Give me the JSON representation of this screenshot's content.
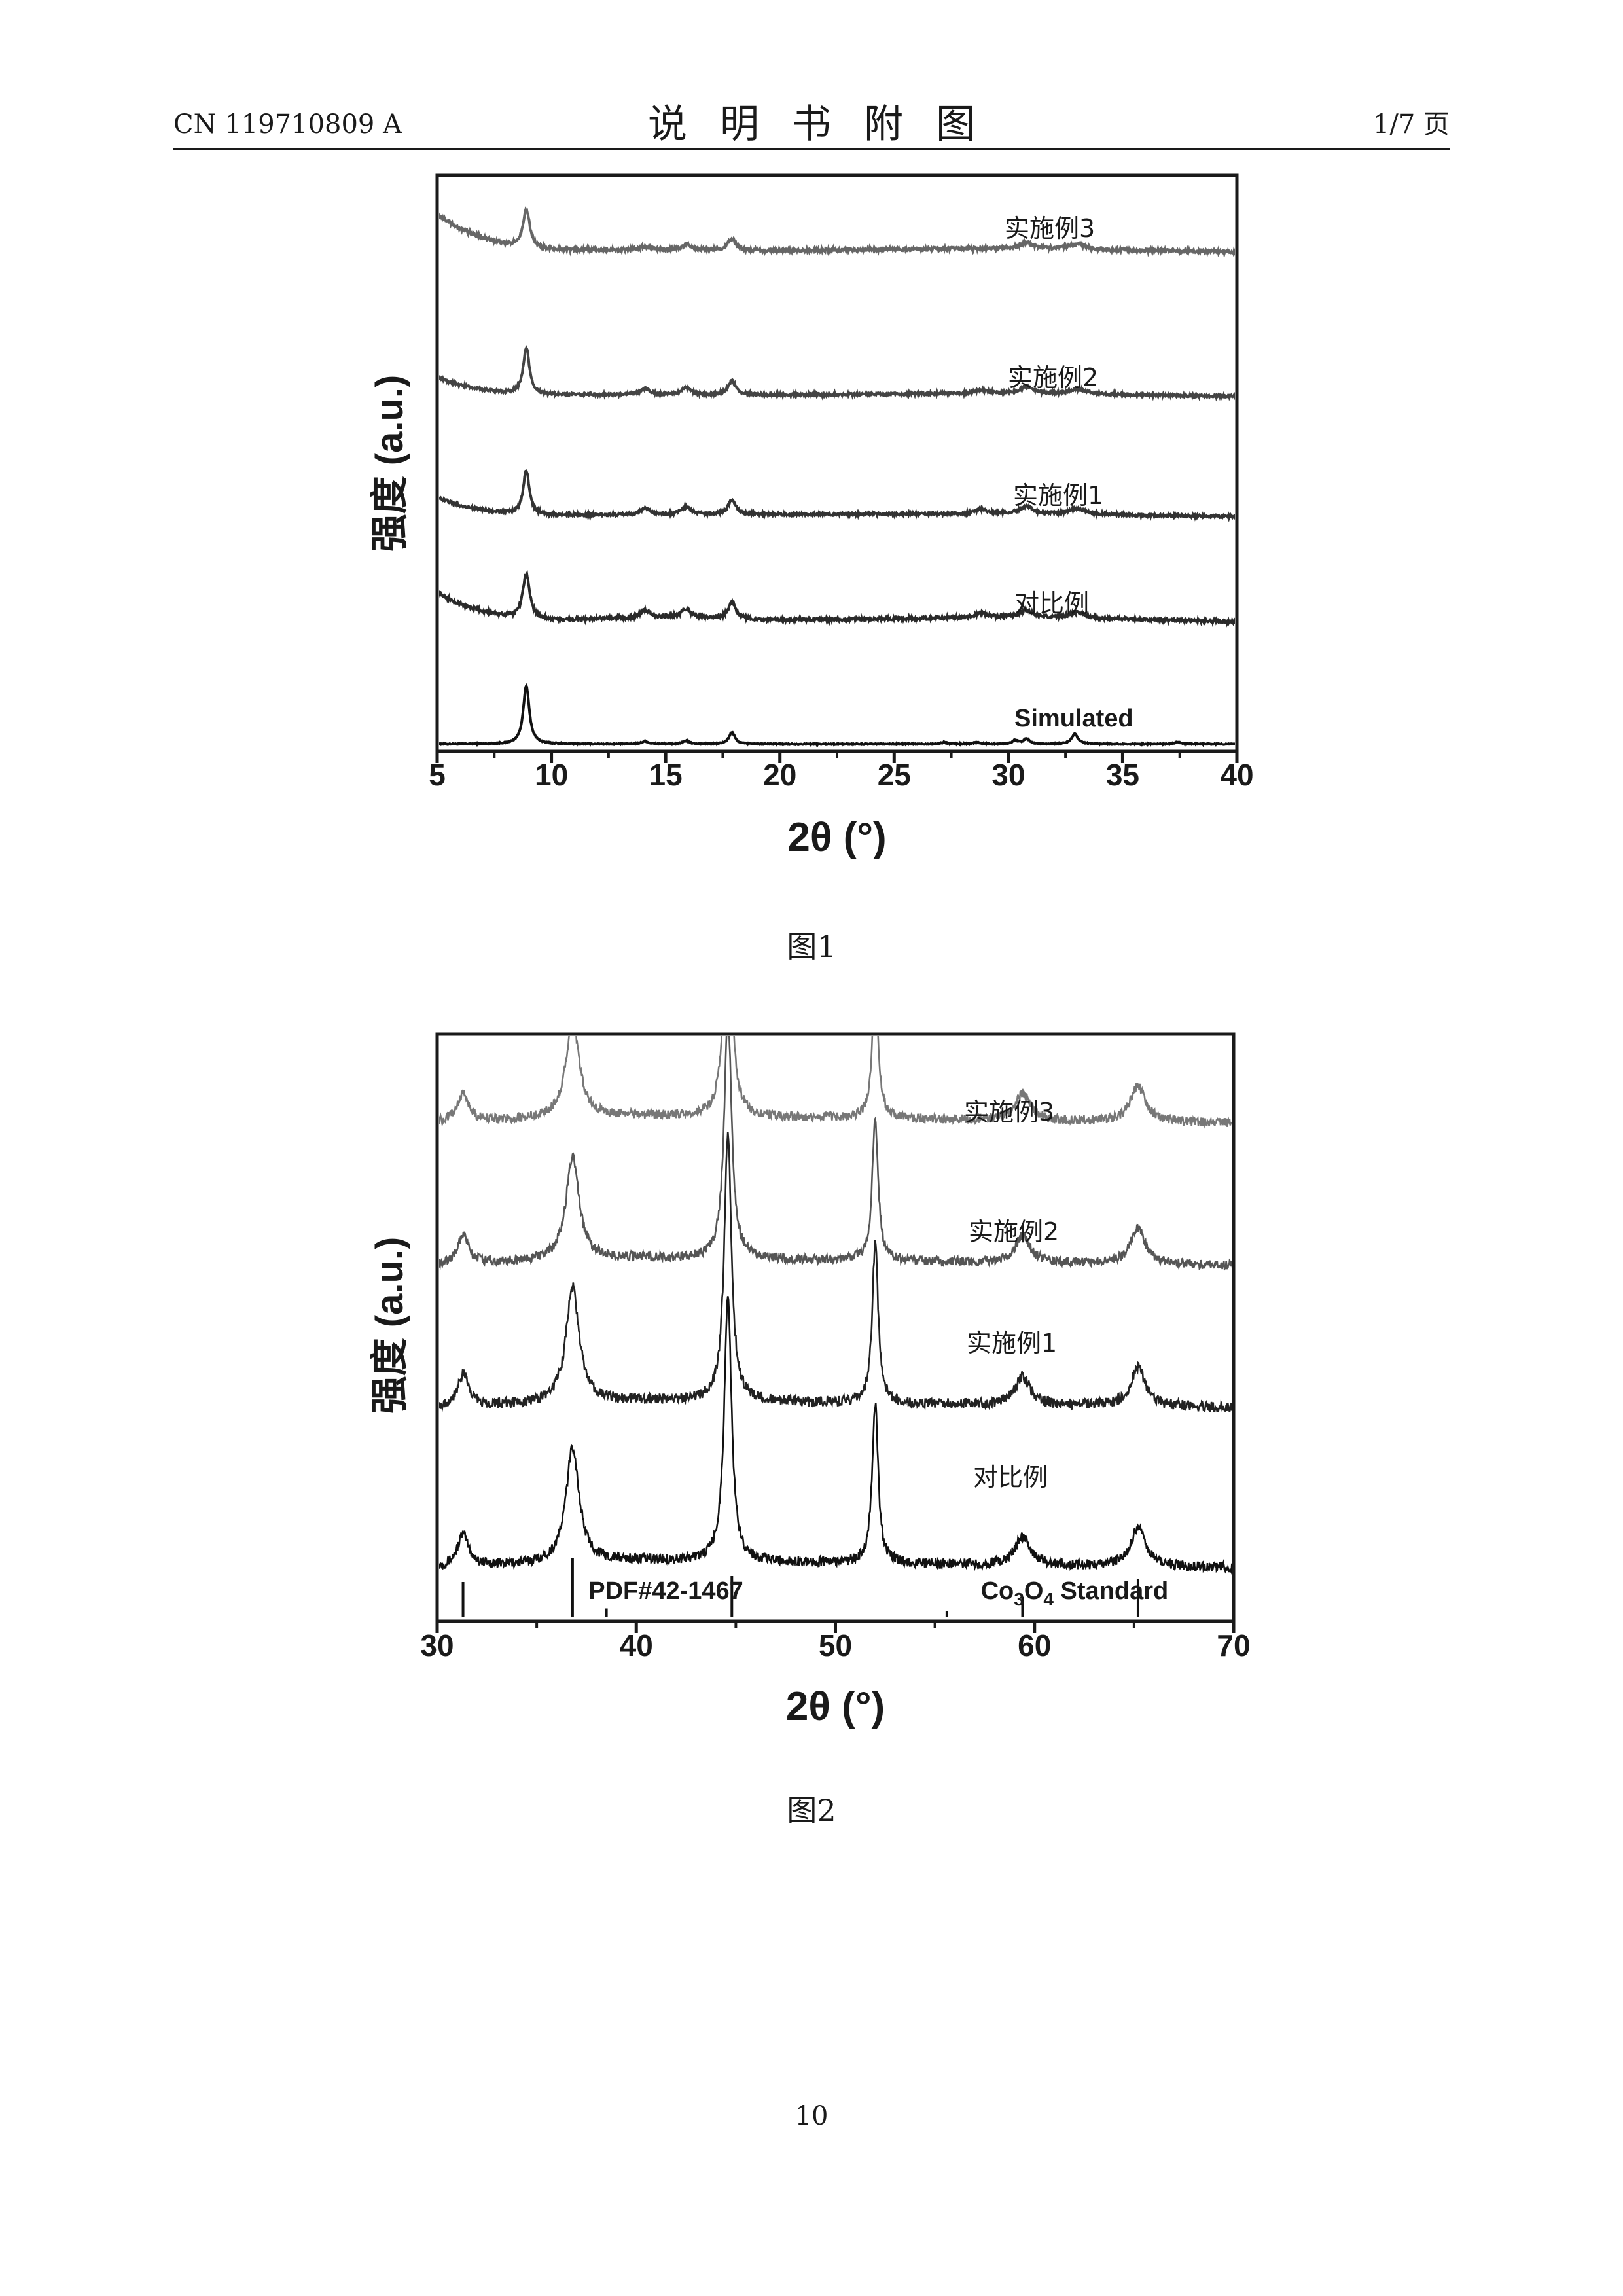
{
  "header": {
    "left": "CN 119710809 A",
    "center": "说明书附图",
    "right": "1/7 页"
  },
  "page_number": "10",
  "chart_data": [
    {
      "type": "line",
      "caption": "图1",
      "xlabel": "2θ (°)",
      "ylabel": "强度 (a.u.)",
      "xlim": [
        5,
        40
      ],
      "xticks": [
        5,
        10,
        15,
        20,
        25,
        30,
        35,
        40
      ],
      "grid": false,
      "y_units": "stacked offset (arbitrary)",
      "series": [
        {
          "name": "Simulated",
          "color": "#111111",
          "baseline": 0,
          "background": [
            [
              5,
              0
            ],
            [
              40,
              0
            ]
          ],
          "peaks": [
            [
              8.9,
              0.16,
              8.0
            ],
            [
              14.1,
              0.16,
              0.4
            ],
            [
              15.9,
              0.16,
              0.45
            ],
            [
              17.9,
              0.16,
              1.6
            ],
            [
              27.2,
              0.16,
              0.25
            ],
            [
              28.6,
              0.16,
              0.25
            ],
            [
              30.3,
              0.16,
              0.5
            ],
            [
              30.8,
              0.16,
              0.7
            ],
            [
              32.9,
              0.16,
              1.4
            ],
            [
              37.4,
              0.16,
              0.3
            ]
          ]
        },
        {
          "name": "对比例",
          "color": "#2a2a2a",
          "baseline": 16.8,
          "background": [
            [
              5,
              4
            ],
            [
              6,
              2.4
            ],
            [
              7,
              1.4
            ],
            [
              8,
              0.8
            ],
            [
              10,
              0.2
            ],
            [
              15,
              0.6
            ],
            [
              20,
              0.2
            ],
            [
              30,
              0.6
            ],
            [
              40,
              0
            ]
          ],
          "peaks": [
            [
              8.9,
              0.18,
              6.0
            ],
            [
              14.1,
              0.25,
              1.0
            ],
            [
              15.9,
              0.25,
              1.2
            ],
            [
              17.9,
              0.2,
              2.3
            ],
            [
              28.8,
              0.3,
              0.6
            ],
            [
              30.8,
              0.35,
              1.0
            ],
            [
              33.0,
              0.45,
              0.8
            ]
          ]
        },
        {
          "name": "实施例1",
          "color": "#333333",
          "baseline": 31.2,
          "background": [
            [
              5,
              2.6
            ],
            [
              6,
              1.5
            ],
            [
              7,
              0.9
            ],
            [
              8,
              0.5
            ],
            [
              10,
              0.2
            ],
            [
              20,
              0.3
            ],
            [
              30,
              0.4
            ],
            [
              40,
              0
            ]
          ],
          "peaks": [
            [
              8.9,
              0.16,
              6.0
            ],
            [
              14.1,
              0.25,
              0.9
            ],
            [
              15.9,
              0.25,
              1.1
            ],
            [
              17.9,
              0.2,
              2.0
            ],
            [
              28.8,
              0.3,
              0.6
            ],
            [
              30.8,
              0.35,
              1.0
            ],
            [
              33.0,
              0.45,
              0.8
            ]
          ]
        },
        {
          "name": "实施例2",
          "color": "#444444",
          "baseline": 47.7,
          "background": [
            [
              5,
              2.5
            ],
            [
              6,
              1.5
            ],
            [
              7,
              0.9
            ],
            [
              8,
              0.5
            ],
            [
              10,
              0.2
            ],
            [
              20,
              0.2
            ],
            [
              30,
              0.4
            ],
            [
              40,
              0
            ]
          ],
          "peaks": [
            [
              8.9,
              0.16,
              6.4
            ],
            [
              14.1,
              0.25,
              0.8
            ],
            [
              15.9,
              0.25,
              1.0
            ],
            [
              17.9,
              0.2,
              1.9
            ],
            [
              28.8,
              0.3,
              0.5
            ],
            [
              30.8,
              0.35,
              0.9
            ],
            [
              33.0,
              0.45,
              0.7
            ]
          ]
        },
        {
          "name": "实施例3",
          "color": "#666666",
          "baseline": 67.5,
          "background": [
            [
              5,
              5.0
            ],
            [
              6,
              3.2
            ],
            [
              7,
              1.9
            ],
            [
              8,
              1.0
            ],
            [
              10,
              0.3
            ],
            [
              20,
              0.2
            ],
            [
              30,
              0.5
            ],
            [
              40,
              0
            ]
          ],
          "peaks": [
            [
              8.9,
              0.18,
              5.2
            ],
            [
              14.1,
              0.25,
              0.5
            ],
            [
              15.9,
              0.25,
              0.8
            ],
            [
              17.9,
              0.2,
              1.6
            ],
            [
              30.8,
              0.35,
              0.8
            ],
            [
              33.0,
              0.45,
              0.7
            ]
          ]
        }
      ]
    },
    {
      "type": "line",
      "caption": "图2",
      "xlabel": "2θ (°)",
      "ylabel": "强度 (a.u.)",
      "xlim": [
        30,
        70
      ],
      "xticks": [
        30,
        40,
        50,
        60,
        70
      ],
      "grid": false,
      "y_units": "stacked offset (arbitrary)",
      "reference": {
        "label": "PDF#42-1467",
        "standard_label": "Co3O4 Standard",
        "formula": {
          "a": "Co",
          "sub1": "3",
          "b": "O",
          "sub2": "4",
          "c": " Standard"
        },
        "lines": [
          [
            31.3,
            0.6
          ],
          [
            36.8,
            1.0
          ],
          [
            38.5,
            0.15
          ],
          [
            44.8,
            0.7
          ],
          [
            55.6,
            0.1
          ],
          [
            59.4,
            0.35
          ],
          [
            65.2,
            0.65
          ]
        ]
      },
      "series": [
        {
          "name": "对比例",
          "color": "#111111",
          "baseline": 0,
          "background": [
            [
              30,
              0
            ],
            [
              40,
              0.4
            ],
            [
              70,
              0
            ]
          ],
          "peaks": [
            [
              31.3,
              0.35,
              1.8
            ],
            [
              36.8,
              0.4,
              6.5
            ],
            [
              44.6,
              0.22,
              15.0
            ],
            [
              52.0,
              0.18,
              9.0
            ],
            [
              59.4,
              0.45,
              1.6
            ],
            [
              65.2,
              0.45,
              2.2
            ]
          ]
        },
        {
          "name": "实施例1",
          "color": "#222222",
          "baseline": 9.0,
          "background": [
            [
              30,
              0
            ],
            [
              40,
              0.4
            ],
            [
              70,
              0
            ]
          ],
          "peaks": [
            [
              31.3,
              0.35,
              1.8
            ],
            [
              36.8,
              0.4,
              6.5
            ],
            [
              44.6,
              0.22,
              15.0
            ],
            [
              52.0,
              0.18,
              9.0
            ],
            [
              59.4,
              0.45,
              1.6
            ],
            [
              65.2,
              0.45,
              2.2
            ]
          ]
        },
        {
          "name": "实施例2",
          "color": "#555555",
          "baseline": 17.0,
          "background": [
            [
              30,
              0
            ],
            [
              40,
              0.4
            ],
            [
              70,
              0
            ]
          ],
          "peaks": [
            [
              31.3,
              0.35,
              1.6
            ],
            [
              36.8,
              0.4,
              5.8
            ],
            [
              44.6,
              0.22,
              14.0
            ],
            [
              52.0,
              0.18,
              8.0
            ],
            [
              59.4,
              0.45,
              1.5
            ],
            [
              65.2,
              0.45,
              2.0
            ]
          ]
        },
        {
          "name": "实施例3",
          "color": "#777777",
          "baseline": 25.0,
          "background": [
            [
              30,
              0
            ],
            [
              40,
              0.4
            ],
            [
              70,
              0
            ]
          ],
          "peaks": [
            [
              31.3,
              0.35,
              1.6
            ],
            [
              36.8,
              0.4,
              5.5
            ],
            [
              44.6,
              0.22,
              14.0
            ],
            [
              52.0,
              0.18,
              7.6
            ],
            [
              59.4,
              0.45,
              1.5
            ],
            [
              65.2,
              0.45,
              2.0
            ]
          ]
        }
      ]
    }
  ]
}
